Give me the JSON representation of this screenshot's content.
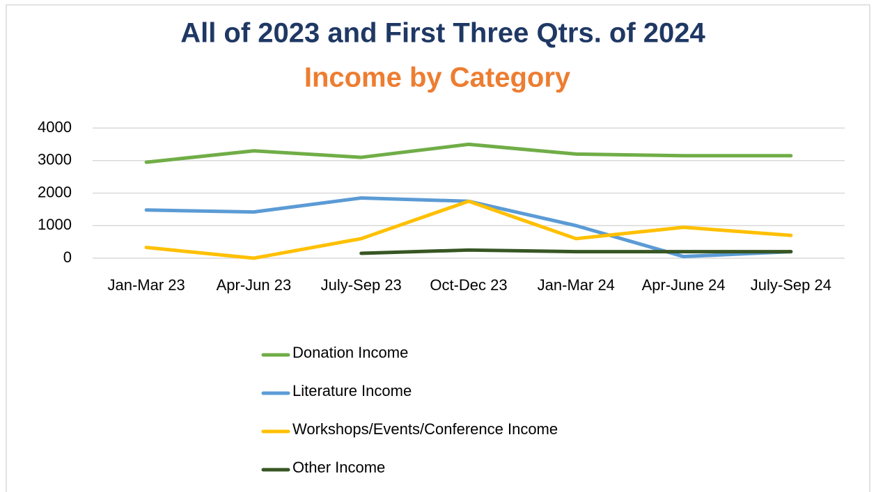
{
  "chart_data": {
    "type": "line",
    "title": "All of 2023 and First Three Qtrs. of 2024",
    "subtitle": "Income by Category",
    "categories": [
      "Jan-Mar 23",
      "Apr-Jun 23",
      "July-Sep 23",
      "Oct-Dec 23",
      "Jan-Mar 24",
      "Apr-June 24",
      "July-Sep 24"
    ],
    "series": [
      {
        "name": "Donation Income",
        "color": "#70ad47",
        "values": [
          2950,
          3300,
          3100,
          3500,
          3200,
          3150,
          3150
        ]
      },
      {
        "name": "Literature Income",
        "color": "#5b9bd5",
        "values": [
          1480,
          1420,
          1850,
          1750,
          1000,
          50,
          200
        ]
      },
      {
        "name": "Workshops/Events/Conference Income",
        "color": "#ffc000",
        "values": [
          330,
          0,
          600,
          1750,
          600,
          950,
          700
        ]
      },
      {
        "name": "Other Income",
        "color": "#375623",
        "values": [
          null,
          null,
          150,
          250,
          200,
          200,
          200
        ]
      }
    ],
    "ylim": [
      0,
      4000
    ],
    "yticks": [
      0,
      1000,
      2000,
      3000,
      4000
    ],
    "grid": true,
    "legend": "bottom"
  }
}
